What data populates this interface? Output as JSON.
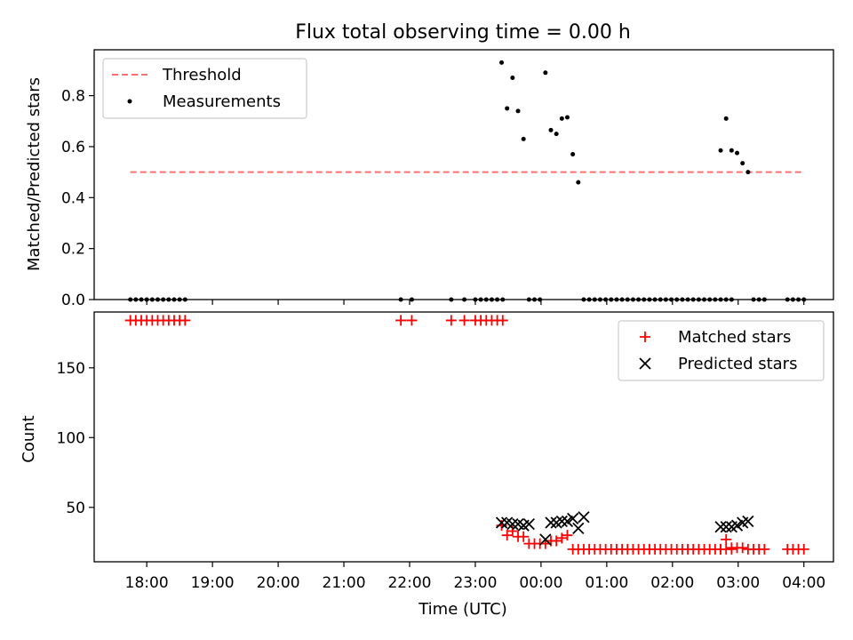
{
  "chart_data": [
    {
      "type": "scatter",
      "title": "Flux total observing time = 0.00 h",
      "xlabel": "",
      "ylabel": "Matched/Predicted stars",
      "ylim": [
        0,
        0.98
      ],
      "xlim": [
        "17:12",
        "04:27"
      ],
      "yticks": [
        "0.0",
        "0.2",
        "0.4",
        "0.6",
        "0.8"
      ],
      "ytick_values": [
        0,
        0.2,
        0.4,
        0.6,
        0.8
      ],
      "legend_position": "top-left",
      "grid": false,
      "series": [
        {
          "name": "Threshold",
          "style": "dashed-line",
          "color": "#ff7070",
          "x": [
            "17:45",
            "04:00"
          ],
          "y": [
            0.5,
            0.5
          ]
        },
        {
          "name": "Measurements",
          "style": "dot",
          "color": "#000000",
          "x": [
            "17:45",
            "17:50",
            "17:55",
            "18:00",
            "18:05",
            "18:10",
            "18:15",
            "18:20",
            "18:25",
            "18:30",
            "18:35",
            "21:52",
            "22:02",
            "22:38",
            "22:50",
            "23:00",
            "23:05",
            "23:10",
            "23:15",
            "23:20",
            "23:25",
            "23:24",
            "23:29",
            "23:34",
            "23:39",
            "23:44",
            "23:49",
            "23:54",
            "23:59",
            "00:04",
            "00:09",
            "00:14",
            "00:19",
            "00:24",
            "00:29",
            "00:34",
            "00:39",
            "00:44",
            "00:49",
            "00:54",
            "00:59",
            "01:04",
            "01:09",
            "01:14",
            "01:19",
            "01:24",
            "01:29",
            "01:34",
            "01:39",
            "01:44",
            "01:49",
            "01:54",
            "01:59",
            "02:04",
            "02:09",
            "02:14",
            "02:19",
            "02:24",
            "02:29",
            "02:34",
            "02:39",
            "02:44",
            "02:49",
            "02:54",
            "02:44",
            "02:49",
            "02:54",
            "02:59",
            "03:04",
            "03:09",
            "03:14",
            "03:19",
            "03:24",
            "03:45",
            "03:50",
            "03:55",
            "04:00"
          ],
          "y": [
            0,
            0,
            0,
            0,
            0,
            0,
            0,
            0,
            0,
            0,
            0,
            0,
            0,
            0,
            0,
            0,
            0,
            0,
            0,
            0,
            0,
            0.93,
            0.75,
            0.87,
            0.74,
            0.63,
            0,
            0,
            0,
            0.89,
            0.665,
            0.65,
            0.71,
            0.715,
            0.57,
            0.46,
            0,
            0,
            0,
            0,
            0,
            0,
            0,
            0,
            0,
            0,
            0,
            0,
            0,
            0,
            0,
            0,
            0,
            0,
            0,
            0,
            0,
            0,
            0,
            0,
            0,
            0,
            0,
            0,
            0.585,
            0.71,
            0.585,
            0.575,
            0.535,
            0.5,
            0,
            0,
            0,
            0,
            0,
            0,
            0
          ]
        }
      ]
    },
    {
      "type": "scatter",
      "title": "",
      "xlabel": "Time (UTC)",
      "ylabel": "Count",
      "ylim": [
        11,
        190
      ],
      "xlim": [
        "17:12",
        "04:27"
      ],
      "yticks": [
        "50",
        "100",
        "150"
      ],
      "ytick_values": [
        50,
        100,
        150
      ],
      "xticks": [
        "18:00",
        "19:00",
        "20:00",
        "21:00",
        "22:00",
        "23:00",
        "00:00",
        "01:00",
        "02:00",
        "03:00",
        "04:00"
      ],
      "legend_position": "top-right",
      "grid": false,
      "series": [
        {
          "name": "Matched stars",
          "style": "plus",
          "color": "#ff0000",
          "x": [
            "17:45",
            "17:50",
            "17:55",
            "18:00",
            "18:05",
            "18:10",
            "18:15",
            "18:20",
            "18:25",
            "18:30",
            "18:35",
            "21:52",
            "22:02",
            "22:38",
            "22:50",
            "23:00",
            "23:05",
            "23:10",
            "23:15",
            "23:20",
            "23:25",
            "23:24",
            "23:29",
            "23:34",
            "23:39",
            "23:44",
            "23:49",
            "23:54",
            "23:59",
            "00:04",
            "00:09",
            "00:14",
            "00:19",
            "00:24",
            "00:29",
            "00:34",
            "00:39",
            "00:44",
            "00:49",
            "00:54",
            "00:59",
            "01:04",
            "01:09",
            "01:14",
            "01:19",
            "01:24",
            "01:29",
            "01:34",
            "01:39",
            "01:44",
            "01:49",
            "01:54",
            "01:59",
            "02:04",
            "02:09",
            "02:14",
            "02:19",
            "02:24",
            "02:29",
            "02:34",
            "02:39",
            "02:44",
            "02:49",
            "02:54",
            "02:44",
            "02:49",
            "02:54",
            "02:59",
            "03:04",
            "03:09",
            "03:14",
            "03:19",
            "03:24",
            "03:45",
            "03:50",
            "03:55",
            "04:00"
          ],
          "y": [
            184,
            184,
            184,
            184,
            184,
            184,
            184,
            184,
            184,
            184,
            184,
            184,
            184,
            184,
            184,
            184,
            184,
            184,
            184,
            184,
            184,
            37,
            30,
            33,
            29,
            29,
            24,
            24,
            24,
            24,
            26,
            26,
            28,
            30,
            20,
            20,
            20,
            20,
            20,
            20,
            20,
            20,
            20,
            20,
            20,
            20,
            20,
            20,
            20,
            20,
            20,
            20,
            20,
            20,
            20,
            20,
            20,
            20,
            20,
            20,
            20,
            20,
            20,
            20,
            20,
            27,
            21,
            21,
            21,
            20,
            20,
            20,
            20,
            20,
            20,
            20,
            20
          ]
        },
        {
          "name": "Predicted stars",
          "style": "x",
          "color": "#000000",
          "x": [
            "23:24",
            "23:29",
            "23:34",
            "23:39",
            "23:44",
            "23:49",
            "00:04",
            "00:09",
            "00:14",
            "00:19",
            "00:24",
            "00:29",
            "00:34",
            "00:39",
            "02:44",
            "02:49",
            "02:54",
            "02:59",
            "03:04",
            "03:09"
          ],
          "y": [
            39,
            39,
            38,
            38,
            37,
            38,
            27,
            39,
            39,
            40,
            40,
            42,
            35,
            43,
            36,
            36,
            36,
            37,
            39,
            40
          ]
        }
      ]
    }
  ]
}
